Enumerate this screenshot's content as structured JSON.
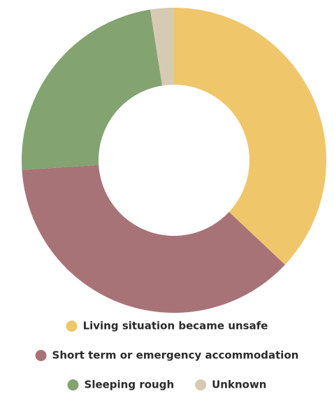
{
  "chart_data": {
    "type": "donut",
    "categories": [
      "Living situation became unsafe",
      "Short term or emergency accommodation",
      "Sleeping rough",
      "Unknown"
    ],
    "values": [
      37,
      37,
      23.5,
      2.5
    ],
    "colors": [
      "#f0c66b",
      "#a87377",
      "#83a370",
      "#d6cbb2"
    ]
  }
}
